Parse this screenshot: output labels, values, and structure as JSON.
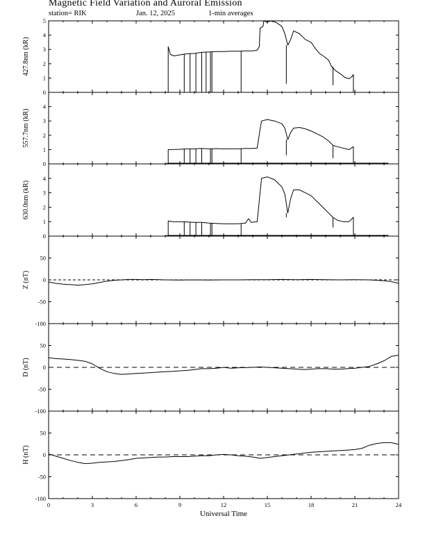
{
  "header": {
    "title": "Magnetic Field Variation and Auroral Emission",
    "station": "station= RIK",
    "date": "Jan. 12, 2025",
    "averaging": "1-min averages"
  },
  "chart_data": [
    {
      "type": "line",
      "ylabel": "427.8nm (kR)",
      "ylim": [
        0,
        5
      ],
      "yticks": [
        0,
        1,
        2,
        3,
        4,
        5
      ],
      "xlim": [
        0,
        24
      ],
      "xticks": [
        0,
        3,
        6,
        9,
        12,
        15,
        18,
        21,
        24
      ],
      "tick_labels_x": false,
      "data_window": [
        8.2,
        20.9
      ],
      "points": [
        [
          8.2,
          0
        ],
        [
          8.2,
          3.2
        ],
        [
          8.35,
          2.65
        ],
        [
          8.6,
          2.55
        ],
        [
          9,
          2.62
        ],
        [
          9.5,
          2.7
        ],
        [
          10,
          2.72
        ],
        [
          10.5,
          2.8
        ],
        [
          11,
          2.82
        ],
        [
          11.5,
          2.85
        ],
        [
          12,
          2.85
        ],
        [
          12.5,
          2.88
        ],
        [
          13,
          2.88
        ],
        [
          13.5,
          2.9
        ],
        [
          14,
          2.9
        ],
        [
          14.3,
          2.95
        ],
        [
          14.45,
          3.2
        ],
        [
          14.5,
          4.5
        ],
        [
          14.7,
          4.6
        ],
        [
          14.75,
          5
        ],
        [
          15.0,
          4.9
        ],
        [
          15.2,
          5
        ],
        [
          15.6,
          4.9
        ],
        [
          16.0,
          4.6
        ],
        [
          16.2,
          4.1
        ],
        [
          16.4,
          3.3
        ],
        [
          16.6,
          3.7
        ],
        [
          16.8,
          4.3
        ],
        [
          17.2,
          4.1
        ],
        [
          17.6,
          3.7
        ],
        [
          18.0,
          3.5
        ],
        [
          18.3,
          3.05
        ],
        [
          18.6,
          2.7
        ],
        [
          18.9,
          2.5
        ],
        [
          19.2,
          2.25
        ],
        [
          19.4,
          1.8
        ],
        [
          19.7,
          1.5
        ],
        [
          20.0,
          1.3
        ],
        [
          20.3,
          1.05
        ],
        [
          20.6,
          0.95
        ],
        [
          20.8,
          1.1
        ],
        [
          20.9,
          1.25
        ],
        [
          20.9,
          0
        ]
      ],
      "spikes": [
        [
          9.3,
          0
        ],
        [
          9.7,
          0
        ],
        [
          10.1,
          0
        ],
        [
          10.5,
          0
        ],
        [
          10.8,
          0
        ],
        [
          11.1,
          0
        ],
        [
          11.2,
          0
        ],
        [
          13.2,
          0
        ],
        [
          16.3,
          0.6
        ],
        [
          19.5,
          0.5
        ]
      ]
    },
    {
      "type": "line",
      "ylabel": "557.7nm (kR)",
      "ylim": [
        0,
        5
      ],
      "yticks": [
        0,
        1,
        2,
        3,
        4
      ],
      "xlim": [
        0,
        24
      ],
      "xticks": [
        0,
        3,
        6,
        9,
        12,
        15,
        18,
        21,
        24
      ],
      "tick_labels_x": false,
      "baseline": [
        [
          8.0,
          0.0
        ],
        [
          8.2,
          0.05
        ],
        [
          20.9,
          0.05
        ],
        [
          23.3,
          0.05
        ]
      ],
      "points": [
        [
          8.2,
          0.05
        ],
        [
          8.2,
          1.0
        ],
        [
          8.5,
          1.0
        ],
        [
          9,
          1.02
        ],
        [
          9.5,
          1.05
        ],
        [
          10,
          1.05
        ],
        [
          10.5,
          1.08
        ],
        [
          11,
          1.05
        ],
        [
          11.5,
          1.07
        ],
        [
          12,
          1.05
        ],
        [
          12.5,
          1.06
        ],
        [
          13,
          1.06
        ],
        [
          13.5,
          1.08
        ],
        [
          14,
          1.08
        ],
        [
          14.3,
          1.1
        ],
        [
          14.5,
          2.4
        ],
        [
          14.6,
          3.0
        ],
        [
          15.0,
          3.1
        ],
        [
          15.5,
          3.0
        ],
        [
          16.0,
          2.8
        ],
        [
          16.2,
          2.5
        ],
        [
          16.4,
          1.7
        ],
        [
          16.6,
          2.2
        ],
        [
          16.8,
          2.5
        ],
        [
          17.2,
          2.55
        ],
        [
          17.6,
          2.45
        ],
        [
          18.0,
          2.3
        ],
        [
          18.4,
          2.1
        ],
        [
          18.8,
          1.9
        ],
        [
          19.2,
          1.6
        ],
        [
          19.5,
          1.3
        ],
        [
          19.8,
          1.2
        ],
        [
          20.2,
          1.1
        ],
        [
          20.6,
          1.0
        ],
        [
          20.9,
          1.2
        ],
        [
          20.9,
          0.05
        ]
      ],
      "spikes": [
        [
          9.3,
          0.05
        ],
        [
          9.7,
          0.05
        ],
        [
          10.1,
          0.05
        ],
        [
          10.5,
          0.05
        ],
        [
          11.1,
          0.05
        ],
        [
          11.2,
          0.05
        ],
        [
          13.2,
          0.05
        ],
        [
          16.3,
          0.6
        ],
        [
          19.5,
          0.4
        ]
      ]
    },
    {
      "type": "line",
      "ylabel": "630.0nm (kR)",
      "ylim": [
        0,
        5
      ],
      "yticks": [
        0,
        1,
        2,
        3,
        4
      ],
      "xlim": [
        0,
        24
      ],
      "xticks": [
        0,
        3,
        6,
        9,
        12,
        15,
        18,
        21,
        24
      ],
      "tick_labels_x": false,
      "baseline": [
        [
          8.0,
          0.0
        ],
        [
          8.2,
          0.05
        ],
        [
          20.9,
          0.05
        ],
        [
          23.3,
          0.05
        ]
      ],
      "points": [
        [
          8.2,
          0.05
        ],
        [
          8.2,
          1.05
        ],
        [
          8.5,
          1.0
        ],
        [
          9,
          1.0
        ],
        [
          9.5,
          0.98
        ],
        [
          10,
          0.95
        ],
        [
          10.5,
          0.95
        ],
        [
          11,
          0.9
        ],
        [
          11.5,
          0.88
        ],
        [
          12,
          0.85
        ],
        [
          12.5,
          0.85
        ],
        [
          13,
          0.85
        ],
        [
          13.5,
          0.9
        ],
        [
          13.7,
          1.2
        ],
        [
          13.9,
          0.95
        ],
        [
          14.3,
          1.0
        ],
        [
          14.5,
          3.0
        ],
        [
          14.6,
          4.0
        ],
        [
          15.0,
          4.1
        ],
        [
          15.5,
          3.9
        ],
        [
          16.0,
          3.4
        ],
        [
          16.2,
          2.9
        ],
        [
          16.4,
          1.6
        ],
        [
          16.6,
          2.6
        ],
        [
          16.8,
          3.2
        ],
        [
          17.2,
          3.2
        ],
        [
          17.6,
          3.0
        ],
        [
          18.0,
          2.8
        ],
        [
          18.4,
          2.4
        ],
        [
          18.8,
          2.0
        ],
        [
          19.2,
          1.6
        ],
        [
          19.5,
          1.3
        ],
        [
          19.8,
          1.1
        ],
        [
          20.2,
          1.0
        ],
        [
          20.6,
          1.0
        ],
        [
          20.9,
          1.3
        ],
        [
          20.9,
          0.05
        ]
      ],
      "spikes": [
        [
          9.3,
          0.05
        ],
        [
          9.7,
          0.05
        ],
        [
          10.1,
          0.05
        ],
        [
          10.5,
          0.05
        ],
        [
          11.1,
          0.05
        ],
        [
          11.2,
          0.05
        ],
        [
          13.2,
          0.05
        ],
        [
          16.3,
          1.3
        ],
        [
          19.5,
          0.6
        ]
      ]
    },
    {
      "type": "line",
      "ylabel": "Z (nT)",
      "ylim": [
        -100,
        100
      ],
      "yticks": [
        -100,
        -50,
        0,
        50
      ],
      "xlim": [
        0,
        24
      ],
      "xticks": [
        0,
        3,
        6,
        9,
        12,
        15,
        18,
        21,
        24
      ],
      "tick_labels_x": false,
      "zero_line": "thin-dashed",
      "points": [
        [
          0,
          -5
        ],
        [
          0.5,
          -8
        ],
        [
          1,
          -10
        ],
        [
          1.5,
          -11
        ],
        [
          2,
          -12
        ],
        [
          2.5,
          -11
        ],
        [
          3,
          -9
        ],
        [
          3.5,
          -6
        ],
        [
          4,
          -3
        ],
        [
          4.5,
          -1
        ],
        [
          5,
          0
        ],
        [
          5.5,
          1
        ],
        [
          6,
          1
        ],
        [
          6.5,
          0.5
        ],
        [
          7,
          1
        ],
        [
          8,
          0
        ],
        [
          9,
          -0.5
        ],
        [
          10,
          0
        ],
        [
          11,
          -0.5
        ],
        [
          12,
          0
        ],
        [
          13,
          0
        ],
        [
          14,
          0.5
        ],
        [
          15,
          0.5
        ],
        [
          16,
          1
        ],
        [
          17,
          0.5
        ],
        [
          18,
          1
        ],
        [
          19,
          0.5
        ],
        [
          20,
          0
        ],
        [
          21,
          0.5
        ],
        [
          22,
          0
        ],
        [
          23,
          -2
        ],
        [
          23.5,
          -4
        ],
        [
          24,
          -8
        ]
      ]
    },
    {
      "type": "line",
      "ylabel": "D (nT)",
      "ylim": [
        -100,
        100
      ],
      "yticks": [
        -100,
        -50,
        0,
        50
      ],
      "xlim": [
        0,
        24
      ],
      "xticks": [
        0,
        3,
        6,
        9,
        12,
        15,
        18,
        21,
        24
      ],
      "tick_labels_x": false,
      "zero_line": "dashed",
      "points": [
        [
          0,
          22
        ],
        [
          0.5,
          20
        ],
        [
          1,
          19
        ],
        [
          1.5,
          18
        ],
        [
          2,
          16
        ],
        [
          2.5,
          14
        ],
        [
          3,
          8
        ],
        [
          3.5,
          -2
        ],
        [
          4,
          -10
        ],
        [
          4.5,
          -14
        ],
        [
          5,
          -16
        ],
        [
          5.5,
          -15
        ],
        [
          6,
          -14
        ],
        [
          6.5,
          -13
        ],
        [
          7,
          -12
        ],
        [
          7.5,
          -11
        ],
        [
          8,
          -10
        ],
        [
          8.5,
          -9
        ],
        [
          9,
          -8
        ],
        [
          9.5,
          -7
        ],
        [
          10,
          -5
        ],
        [
          10.5,
          -3
        ],
        [
          11,
          -3
        ],
        [
          11.5,
          -2
        ],
        [
          12,
          0
        ],
        [
          12.5,
          -2
        ],
        [
          13,
          -1
        ],
        [
          14,
          0
        ],
        [
          14.5,
          1
        ],
        [
          15,
          0
        ],
        [
          15.5,
          -1
        ],
        [
          16,
          -2
        ],
        [
          16.5,
          -3
        ],
        [
          17,
          -4
        ],
        [
          17.5,
          -5
        ],
        [
          18,
          -4
        ],
        [
          18.5,
          -3
        ],
        [
          19,
          -3
        ],
        [
          19.5,
          -4
        ],
        [
          20,
          -4
        ],
        [
          20.5,
          -3
        ],
        [
          21,
          -2
        ],
        [
          21.5,
          0
        ],
        [
          22,
          2
        ],
        [
          22.5,
          8
        ],
        [
          23,
          15
        ],
        [
          23.5,
          25
        ],
        [
          24,
          28
        ]
      ]
    },
    {
      "type": "line",
      "ylabel": "H (nT)",
      "ylim": [
        -100,
        100
      ],
      "yticks": [
        -100,
        -50,
        0,
        50
      ],
      "xlim": [
        0,
        24
      ],
      "xticks": [
        0,
        3,
        6,
        9,
        12,
        15,
        18,
        21,
        24
      ],
      "xlabel": "Universal Time",
      "tick_labels_x": true,
      "zero_line": "dashed",
      "points": [
        [
          0,
          2
        ],
        [
          0.5,
          -3
        ],
        [
          1,
          -8
        ],
        [
          1.5,
          -13
        ],
        [
          2,
          -17
        ],
        [
          2.5,
          -20
        ],
        [
          3,
          -19
        ],
        [
          3.5,
          -17
        ],
        [
          4,
          -16
        ],
        [
          4.5,
          -15
        ],
        [
          5,
          -13
        ],
        [
          5.5,
          -11
        ],
        [
          6,
          -8
        ],
        [
          6.5,
          -7
        ],
        [
          7,
          -6
        ],
        [
          7.5,
          -5
        ],
        [
          8,
          -5
        ],
        [
          8.5,
          -4
        ],
        [
          9,
          -4
        ],
        [
          9.5,
          -4
        ],
        [
          10,
          -3
        ],
        [
          10.5,
          -2
        ],
        [
          11,
          -2
        ],
        [
          11.5,
          0
        ],
        [
          12,
          1
        ],
        [
          12.5,
          0
        ],
        [
          13,
          -2
        ],
        [
          13.5,
          -3
        ],
        [
          14,
          -5
        ],
        [
          14.5,
          -8
        ],
        [
          15,
          -6
        ],
        [
          15.5,
          -4
        ],
        [
          16,
          -2
        ],
        [
          16.5,
          0
        ],
        [
          17,
          2
        ],
        [
          17.5,
          4
        ],
        [
          18,
          6
        ],
        [
          18.5,
          7
        ],
        [
          19,
          8
        ],
        [
          19.5,
          9
        ],
        [
          20,
          10
        ],
        [
          20.5,
          11
        ],
        [
          21,
          12
        ],
        [
          21.5,
          15
        ],
        [
          22,
          22
        ],
        [
          22.5,
          26
        ],
        [
          23,
          28
        ],
        [
          23.5,
          28
        ],
        [
          24,
          24
        ]
      ]
    }
  ]
}
